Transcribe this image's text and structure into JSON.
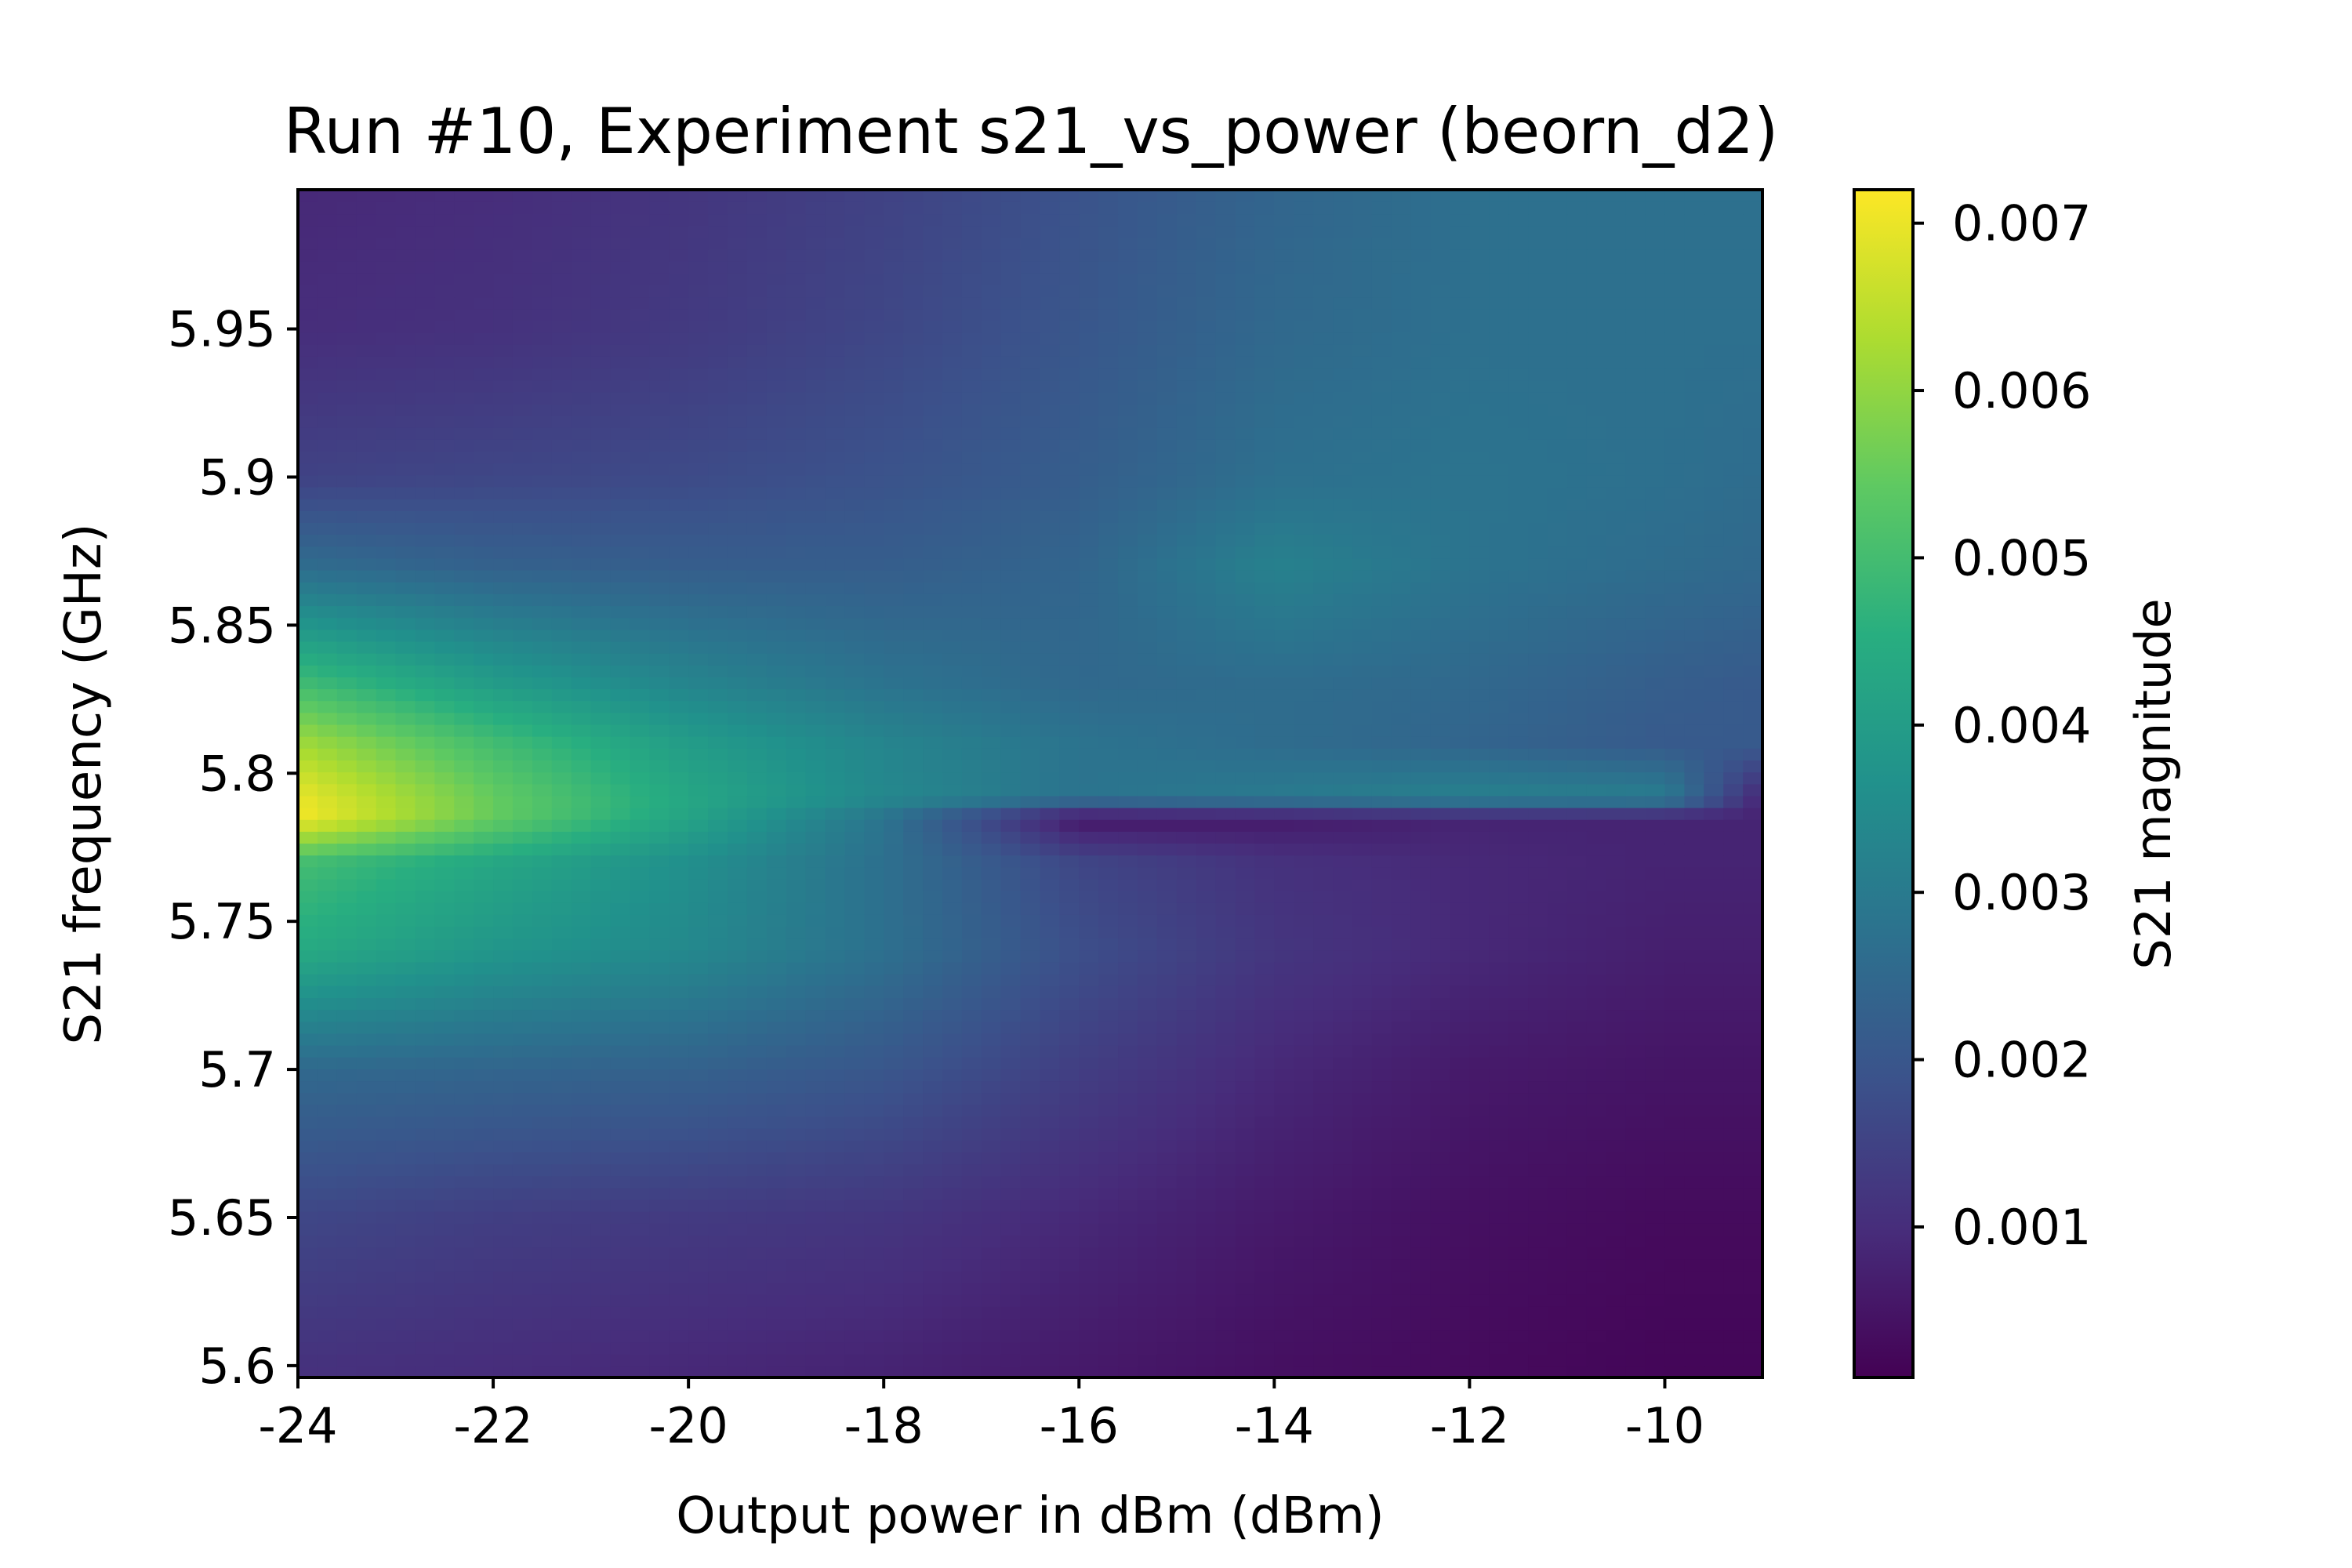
{
  "chart_data": {
    "type": "heatmap",
    "title": "Run #10, Experiment s21_vs_power (beorn_d2)",
    "xlabel": "Output power in dBm (dBm)",
    "ylabel": "S21 frequency (GHz)",
    "colorbar_label": "S21 magnitude",
    "colormap": "viridis",
    "xlim": [
      -24,
      -9
    ],
    "ylim": [
      5.596,
      5.997
    ],
    "clim": [
      0.0001,
      0.0072
    ],
    "x_ticks": [
      -24,
      -22,
      -20,
      -18,
      -16,
      -14,
      -12,
      -10
    ],
    "x_tick_labels": [
      "-24",
      "-22",
      "-20",
      "-18",
      "-16",
      "-14",
      "-12",
      "-10"
    ],
    "y_ticks": [
      5.6,
      5.65,
      5.7,
      5.75,
      5.8,
      5.85,
      5.9,
      5.95
    ],
    "y_tick_labels": [
      "5.6",
      "5.65",
      "5.7",
      "5.75",
      "5.8",
      "5.85",
      "5.9",
      "5.95"
    ],
    "cbar_ticks": [
      0.001,
      0.002,
      0.003,
      0.004,
      0.005,
      0.006,
      0.007
    ],
    "cbar_tick_labels": [
      "0.001",
      "0.002",
      "0.003",
      "0.004",
      "0.005",
      "0.006",
      "0.007"
    ],
    "x": [
      -24,
      -22,
      -20,
      -18,
      -16,
      -14,
      -12,
      -10,
      -9
    ],
    "y": [
      5.6,
      5.65,
      5.7,
      5.74,
      5.77,
      5.785,
      5.792,
      5.81,
      5.83,
      5.87,
      5.9,
      5.95,
      5.997
    ],
    "z": [
      [
        0.0011,
        0.001,
        0.0009,
        0.0008,
        0.0006,
        0.0004,
        0.0003,
        0.0002,
        0.0002
      ],
      [
        0.0016,
        0.0014,
        0.0013,
        0.0012,
        0.0009,
        0.0006,
        0.0004,
        0.0003,
        0.0003
      ],
      [
        0.0025,
        0.0024,
        0.0023,
        0.002,
        0.0014,
        0.0009,
        0.0006,
        0.0005,
        0.0005
      ],
      [
        0.0044,
        0.0038,
        0.0034,
        0.0027,
        0.0018,
        0.0012,
        0.0009,
        0.0007,
        0.0007
      ],
      [
        0.005,
        0.0043,
        0.0036,
        0.0027,
        0.0016,
        0.0011,
        0.0009,
        0.0008,
        0.0008
      ],
      [
        0.0071,
        0.0055,
        0.0042,
        0.0028,
        0.0005,
        0.0006,
        0.0008,
        0.0008,
        0.0008
      ],
      [
        0.007,
        0.0055,
        0.0043,
        0.0034,
        0.0028,
        0.003,
        0.0032,
        0.0031,
        0.0008
      ],
      [
        0.0062,
        0.005,
        0.004,
        0.0033,
        0.0028,
        0.0026,
        0.0024,
        0.0021,
        0.0021
      ],
      [
        0.005,
        0.004,
        0.0033,
        0.0028,
        0.0025,
        0.0026,
        0.0025,
        0.0022,
        0.0021
      ],
      [
        0.0026,
        0.0023,
        0.0022,
        0.0022,
        0.0024,
        0.0032,
        0.0028,
        0.0026,
        0.0025
      ],
      [
        0.0015,
        0.0016,
        0.0017,
        0.0019,
        0.0022,
        0.0027,
        0.0028,
        0.0027,
        0.0026
      ],
      [
        0.001,
        0.0011,
        0.0013,
        0.0016,
        0.002,
        0.0025,
        0.0027,
        0.0027,
        0.0027
      ],
      [
        0.0009,
        0.001,
        0.0012,
        0.0015,
        0.0019,
        0.0024,
        0.0027,
        0.0027,
        0.0027
      ]
    ]
  }
}
